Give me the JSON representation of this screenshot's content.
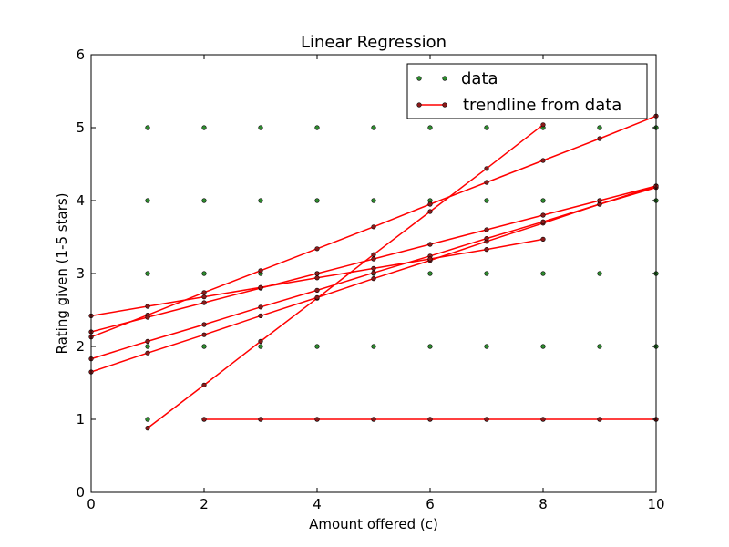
{
  "chart_data": {
    "type": "scatter",
    "title": "Linear Regression",
    "xlabel": "Amount offered (c)",
    "ylabel": "Rating given (1-5 stars)",
    "xlim": [
      0,
      10
    ],
    "ylim": [
      0,
      6
    ],
    "xticks": [
      "0",
      "2",
      "4",
      "6",
      "8",
      "10"
    ],
    "yticks": [
      "0",
      "1",
      "2",
      "3",
      "4",
      "5",
      "6"
    ],
    "grid": false,
    "legend": {
      "placement": "top-right",
      "entries": [
        "data",
        "trendline from data"
      ]
    },
    "colors": {
      "data": "#2e8b2e",
      "trendline": "#ff0000",
      "trend_marker": "#8b1a1a"
    },
    "series": [
      {
        "name": "data",
        "style": "points",
        "points": [
          [
            1,
            5
          ],
          [
            2,
            5
          ],
          [
            3,
            5
          ],
          [
            4,
            5
          ],
          [
            5,
            5
          ],
          [
            6,
            5
          ],
          [
            7,
            5
          ],
          [
            8,
            5
          ],
          [
            9,
            5
          ],
          [
            10,
            5
          ],
          [
            1,
            4
          ],
          [
            2,
            4
          ],
          [
            3,
            4
          ],
          [
            4,
            4
          ],
          [
            5,
            4
          ],
          [
            6,
            4
          ],
          [
            7,
            4
          ],
          [
            8,
            4
          ],
          [
            9,
            4
          ],
          [
            10,
            4
          ],
          [
            1,
            3
          ],
          [
            2,
            3
          ],
          [
            3,
            3
          ],
          [
            4,
            3
          ],
          [
            5,
            3
          ],
          [
            6,
            3
          ],
          [
            7,
            3
          ],
          [
            8,
            3
          ],
          [
            9,
            3
          ],
          [
            10,
            3
          ],
          [
            1,
            2
          ],
          [
            2,
            2
          ],
          [
            3,
            2
          ],
          [
            4,
            2
          ],
          [
            5,
            2
          ],
          [
            6,
            2
          ],
          [
            7,
            2
          ],
          [
            8,
            2
          ],
          [
            9,
            2
          ],
          [
            10,
            2
          ],
          [
            1,
            1
          ],
          [
            2,
            1
          ],
          [
            3,
            1
          ],
          [
            4,
            1
          ],
          [
            5,
            1
          ],
          [
            6,
            1
          ],
          [
            7,
            1
          ],
          [
            8,
            1
          ],
          [
            9,
            1
          ],
          [
            10,
            1
          ]
        ]
      },
      {
        "name": "trendline from data",
        "style": "lines",
        "lines": [
          {
            "x": [
              1,
              2,
              3,
              4,
              5,
              6,
              7,
              8
            ],
            "y": [
              0.88,
              1.47,
              2.07,
              2.66,
              3.26,
              3.85,
              4.44,
              5.04
            ]
          },
          {
            "x": [
              0,
              1,
              2,
              3,
              4,
              5,
              6,
              7,
              8,
              9,
              10
            ],
            "y": [
              2.13,
              2.43,
              2.74,
              3.04,
              3.34,
              3.64,
              3.95,
              4.25,
              4.55,
              4.85,
              5.16
            ]
          },
          {
            "x": [
              0,
              1,
              2,
              3,
              4,
              5,
              6,
              7,
              8,
              9,
              10
            ],
            "y": [
              1.65,
              1.91,
              2.16,
              2.42,
              2.67,
              2.93,
              3.18,
              3.44,
              3.69,
              3.95,
              4.2
            ]
          },
          {
            "x": [
              0,
              1,
              2,
              3,
              4,
              5,
              6,
              7,
              8,
              9,
              10
            ],
            "y": [
              1.83,
              2.07,
              2.3,
              2.54,
              2.77,
              3.01,
              3.24,
              3.48,
              3.71,
              3.95,
              4.18
            ]
          },
          {
            "x": [
              0,
              1,
              2,
              3,
              4,
              5,
              6,
              7,
              8,
              9,
              10
            ],
            "y": [
              2.2,
              2.4,
              2.6,
              2.8,
              3.0,
              3.2,
              3.4,
              3.6,
              3.8,
              4.0,
              4.2
            ]
          },
          {
            "x": [
              0,
              1,
              2,
              3,
              4,
              5,
              6,
              7,
              8
            ],
            "y": [
              2.42,
              2.55,
              2.68,
              2.81,
              2.94,
              3.07,
              3.2,
              3.33,
              3.47
            ]
          },
          {
            "x": [
              2,
              3,
              4,
              5,
              6,
              7,
              8,
              9,
              10
            ],
            "y": [
              1,
              1,
              1,
              1,
              1,
              1,
              1,
              1,
              1
            ]
          }
        ]
      }
    ]
  }
}
